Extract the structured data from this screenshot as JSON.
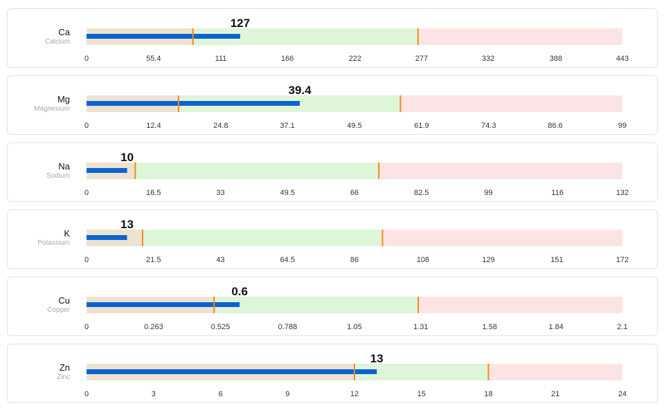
{
  "colors": {
    "low_band": "#ece2cf",
    "ok_band": "#dff5d7",
    "high_band": "#fde4e4",
    "value_bar": "#0a63d0",
    "threshold": "#f28a1a"
  },
  "chart_data": [
    {
      "type": "bullet",
      "symbol": "Ca",
      "name": "Calcium",
      "value": 127,
      "value_label": "127",
      "xlim": [
        0,
        443
      ],
      "ranges": [
        88,
        274
      ],
      "ticks": [
        0,
        55.4,
        111,
        166,
        222,
        277,
        332,
        388,
        443
      ],
      "tick_labels": [
        "0",
        "55.4",
        "111",
        "166",
        "222",
        "277",
        "332",
        "388",
        "443"
      ]
    },
    {
      "type": "bullet",
      "symbol": "Mg",
      "name": "Magnesium",
      "value": 39.4,
      "value_label": "39.4",
      "xlim": [
        0,
        99
      ],
      "ranges": [
        17,
        58
      ],
      "ticks": [
        0,
        12.4,
        24.8,
        37.1,
        49.5,
        61.9,
        74.3,
        86.6,
        99
      ],
      "tick_labels": [
        "0",
        "12.4",
        "24.8",
        "37.1",
        "49.5",
        "61.9",
        "74.3",
        "86.6",
        "99"
      ]
    },
    {
      "type": "bullet",
      "symbol": "Na",
      "name": "Sodium",
      "value": 10,
      "value_label": "10",
      "xlim": [
        0,
        132
      ],
      "ranges": [
        12,
        72
      ],
      "ticks": [
        0,
        16.5,
        33,
        49.5,
        66,
        82.5,
        99,
        116,
        132
      ],
      "tick_labels": [
        "0",
        "16.5",
        "33",
        "49.5",
        "66",
        "82.5",
        "99",
        "116",
        "132"
      ]
    },
    {
      "type": "bullet",
      "symbol": "K",
      "name": "Potassium",
      "value": 13,
      "value_label": "13",
      "xlim": [
        0,
        172
      ],
      "ranges": [
        18,
        95
      ],
      "ticks": [
        0,
        21.5,
        43,
        64.5,
        86,
        108,
        129,
        151,
        172
      ],
      "tick_labels": [
        "0",
        "21.5",
        "43",
        "64.5",
        "86",
        "108",
        "129",
        "151",
        "172"
      ]
    },
    {
      "type": "bullet",
      "symbol": "Cu",
      "name": "Copper",
      "value": 0.6,
      "value_label": "0.6",
      "xlim": [
        0,
        2.1
      ],
      "ranges": [
        0.5,
        1.3
      ],
      "ticks": [
        0,
        0.263,
        0.525,
        0.788,
        1.05,
        1.31,
        1.58,
        1.84,
        2.1
      ],
      "tick_labels": [
        "0",
        "0.263",
        "0.525",
        "0.788",
        "1.05",
        "1.31",
        "1.58",
        "1.84",
        "2.1"
      ]
    },
    {
      "type": "bullet",
      "symbol": "Zn",
      "name": "Zinc",
      "value": 13,
      "value_label": "13",
      "xlim": [
        0,
        24
      ],
      "ranges": [
        12,
        18
      ],
      "ticks": [
        0,
        3,
        6,
        9,
        12,
        15,
        18,
        21,
        24
      ],
      "tick_labels": [
        "0",
        "3",
        "6",
        "9",
        "12",
        "15",
        "18",
        "21",
        "24"
      ]
    }
  ]
}
